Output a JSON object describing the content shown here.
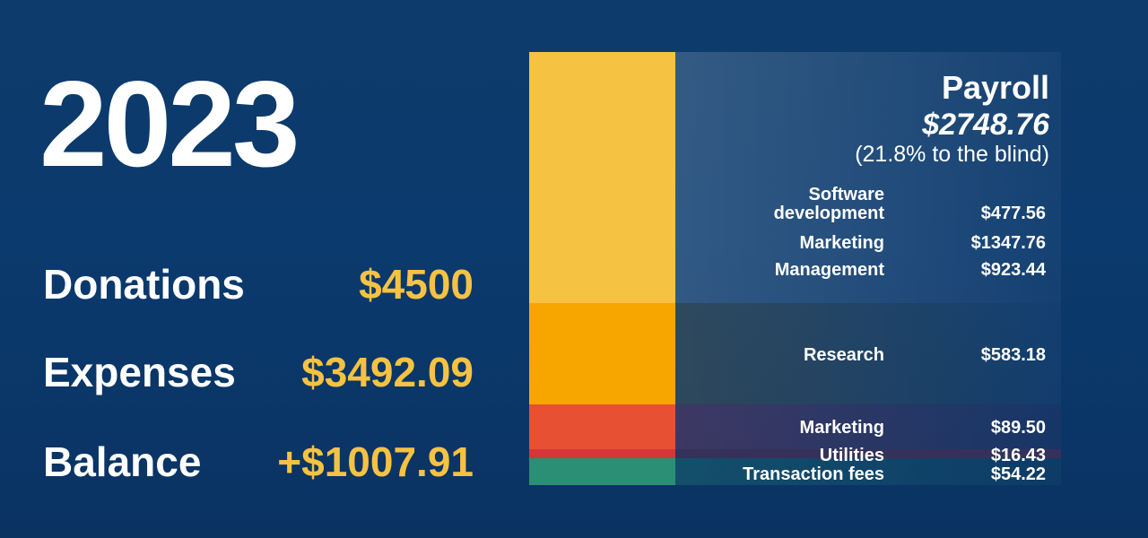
{
  "year": "2023",
  "summary": {
    "donations_label": "Donations",
    "donations_value": "$4500",
    "expenses_label": "Expenses",
    "expenses_value": "$3492.09",
    "balance_label": "Balance",
    "balance_value": "+$1007.91"
  },
  "payroll": {
    "title": "Payroll",
    "amount": "$2748.76",
    "note": "(21.8% to the blind)",
    "items": [
      {
        "label_line1": "Software",
        "label_line2": "development",
        "amount": "$477.56"
      },
      {
        "label": "Marketing",
        "amount": "$1347.76"
      },
      {
        "label": "Management",
        "amount": "$923.44"
      }
    ]
  },
  "expenses": [
    {
      "label": "Research",
      "amount": "$583.18"
    },
    {
      "label": "Marketing",
      "amount": "$89.50"
    },
    {
      "label": "Utilities",
      "amount": "$16.43"
    },
    {
      "label": "Transaction fees",
      "amount": "$54.22"
    }
  ],
  "colors": {
    "payroll": "#f5c242",
    "research": "#f7a600",
    "marketing": "#e85034",
    "utilities": "#d4363a",
    "transaction_fees": "#2a8f74",
    "accent": "#f5c242"
  }
}
